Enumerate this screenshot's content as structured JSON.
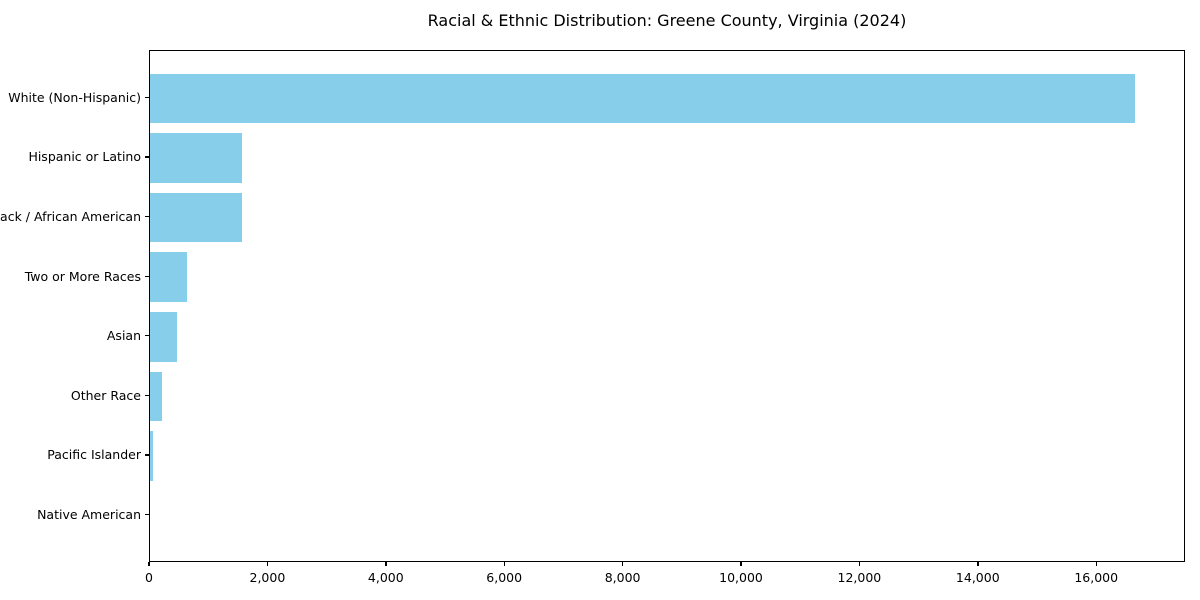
{
  "figure": {
    "title": "Racial & Ethnic Distribution: Greene County, Virginia (2024)"
  },
  "chart_data": {
    "type": "bar",
    "orientation": "horizontal",
    "title": "Racial & Ethnic Distribution: Greene County, Virginia (2024)",
    "categories": [
      "White (Non-Hispanic)",
      "Hispanic or Latino",
      "Black / African American",
      "Two or More Races",
      "Asian",
      "Other Race",
      "Pacific Islander",
      "Native American"
    ],
    "values": [
      16670,
      1560,
      1550,
      620,
      455,
      200,
      45,
      0
    ],
    "xlabel": "",
    "ylabel": "",
    "xlim": [
      0,
      17500
    ],
    "xticks": [
      0,
      2000,
      4000,
      6000,
      8000,
      10000,
      12000,
      14000,
      16000
    ],
    "xtick_labels": [
      "0",
      "2,000",
      "4,000",
      "6,000",
      "8,000",
      "10,000",
      "12,000",
      "14,000",
      "16,000"
    ],
    "bar_color": "#87CEEB",
    "axis_color": "#000000",
    "grid": false,
    "legend": false
  }
}
